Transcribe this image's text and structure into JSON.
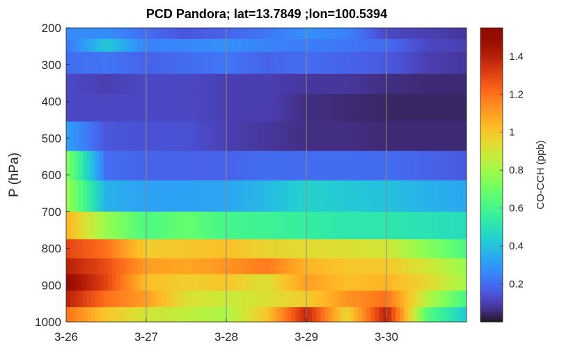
{
  "chart_data": {
    "type": "heatmap",
    "title": "PCD Pandora; lat=13.7849 ;lon=100.5394",
    "ylabel": "P (hPa)",
    "colorbar_label": "CO-CCH (ppb)",
    "colormap": "turbo",
    "color_range": [
      0,
      1.55
    ],
    "colorbar_ticks": [
      0.2,
      0.4,
      0.6,
      0.8,
      1,
      1.2,
      1.4
    ],
    "x_ticks": [
      "3-26",
      "3-27",
      "3-28",
      "3-29",
      "3-30"
    ],
    "x_grid": true,
    "y_ticks": [
      200,
      300,
      400,
      500,
      600,
      700,
      800,
      900,
      1000
    ],
    "ylim": [
      1000,
      200
    ],
    "y_reversed": true,
    "levels": [
      {
        "p_top": 200,
        "p_bot": 230
      },
      {
        "p_top": 230,
        "p_bot": 265
      },
      {
        "p_top": 265,
        "p_bot": 325
      },
      {
        "p_top": 325,
        "p_bot": 380
      },
      {
        "p_top": 380,
        "p_bot": 455
      },
      {
        "p_top": 455,
        "p_bot": 535
      },
      {
        "p_top": 535,
        "p_bot": 615
      },
      {
        "p_top": 615,
        "p_bot": 700
      },
      {
        "p_top": 700,
        "p_bot": 775
      },
      {
        "p_top": 775,
        "p_bot": 827
      },
      {
        "p_top": 827,
        "p_bot": 870
      },
      {
        "p_top": 870,
        "p_bot": 915
      },
      {
        "p_top": 915,
        "p_bot": 960
      },
      {
        "p_top": 960,
        "p_bot": 1000
      }
    ],
    "times": [
      "3-26 00h",
      "3-26 12h",
      "3-27 00h",
      "3-27 12h",
      "3-28 00h",
      "3-28 12h",
      "3-29 00h",
      "3-29 12h",
      "3-30 00h",
      "3-30 12h",
      "3-31 00h"
    ],
    "values": [
      [
        0.26,
        0.28,
        0.2,
        0.15,
        0.18,
        0.22,
        0.28,
        0.25,
        0.12,
        0.1,
        0.08
      ],
      [
        0.22,
        0.42,
        0.25,
        0.26,
        0.28,
        0.25,
        0.24,
        0.22,
        0.2,
        0.12,
        0.1
      ],
      [
        0.2,
        0.22,
        0.18,
        0.2,
        0.22,
        0.18,
        0.2,
        0.18,
        0.16,
        0.1,
        0.08
      ],
      [
        0.12,
        0.1,
        0.12,
        0.12,
        0.1,
        0.1,
        0.08,
        0.08,
        0.06,
        0.05,
        0.05
      ],
      [
        0.12,
        0.12,
        0.12,
        0.12,
        0.1,
        0.1,
        0.06,
        0.05,
        0.04,
        0.04,
        0.04
      ],
      [
        0.32,
        0.15,
        0.14,
        0.14,
        0.1,
        0.08,
        0.06,
        0.06,
        0.05,
        0.05,
        0.05
      ],
      [
        0.75,
        0.2,
        0.18,
        0.18,
        0.18,
        0.2,
        0.2,
        0.2,
        0.2,
        0.18,
        0.16
      ],
      [
        0.8,
        0.36,
        0.32,
        0.32,
        0.33,
        0.38,
        0.45,
        0.42,
        0.4,
        0.36,
        0.33
      ],
      [
        1.05,
        0.78,
        0.62,
        0.68,
        0.6,
        0.58,
        0.55,
        0.52,
        0.52,
        0.5,
        0.48
      ],
      [
        1.3,
        1.2,
        0.98,
        1.0,
        1.02,
        0.96,
        0.94,
        0.92,
        0.9,
        0.75,
        0.62
      ],
      [
        1.4,
        1.28,
        1.1,
        1.08,
        1.12,
        1.18,
        1.05,
        1.0,
        1.0,
        0.9,
        0.78
      ],
      [
        1.5,
        1.3,
        1.02,
        0.98,
        1.0,
        0.92,
        1.1,
        1.02,
        1.05,
        0.95,
        0.8
      ],
      [
        1.4,
        1.2,
        1.1,
        0.92,
        0.88,
        0.92,
        0.98,
        1.12,
        1.2,
        0.85,
        0.6
      ],
      [
        1.2,
        1.0,
        0.9,
        0.86,
        0.82,
        1.0,
        1.38,
        0.95,
        1.4,
        0.65,
        0.42
      ]
    ]
  }
}
